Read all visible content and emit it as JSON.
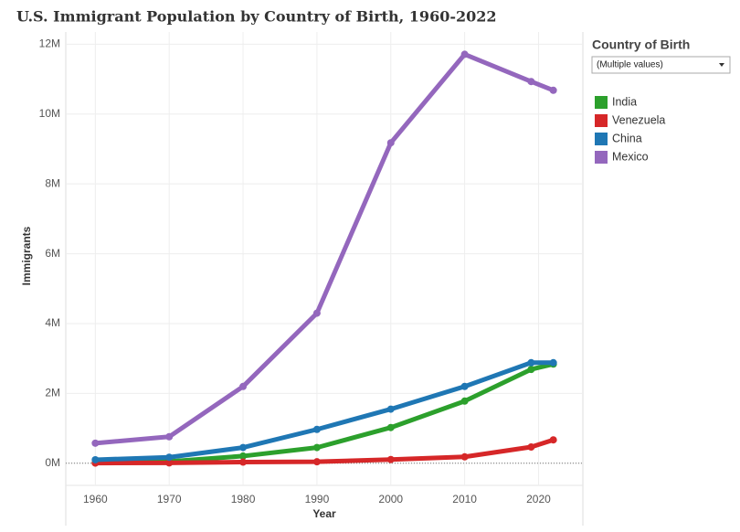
{
  "chart_data": {
    "type": "line",
    "title": "U.S. Immigrant Population by Country of Birth, 1960-2022",
    "x_label": "Year",
    "y_label": "Immigrants",
    "legend_title": "Country of Birth",
    "filter_label": "(Multiple values)",
    "x": [
      1960,
      1970,
      1980,
      1990,
      2000,
      2010,
      2019,
      2022
    ],
    "xlim": [
      1956,
      2026
    ],
    "xticks": [
      1960,
      1970,
      1980,
      1990,
      2000,
      2010,
      2020
    ],
    "ylim": [
      -1000000,
      12350000
    ],
    "yticks": [
      {
        "value": 0,
        "label": "0M"
      },
      {
        "value": 2000000,
        "label": "2M"
      },
      {
        "value": 4000000,
        "label": "4M"
      },
      {
        "value": 6000000,
        "label": "6M"
      },
      {
        "value": 8000000,
        "label": "8M"
      },
      {
        "value": 10000000,
        "label": "10M"
      },
      {
        "value": 12000000,
        "label": "12M"
      }
    ],
    "grid": true,
    "series": [
      {
        "name": "India",
        "color": "#2ca02c",
        "values": [
          12000,
          51000,
          206000,
          450000,
          1023000,
          1780000,
          2688000,
          2840000
        ]
      },
      {
        "name": "Venezuela",
        "color": "#d62728",
        "values": [
          6000,
          11000,
          33000,
          43000,
          107000,
          184000,
          465000,
          670000
        ]
      },
      {
        "name": "China",
        "color": "#1f77b4",
        "values": [
          100000,
          172000,
          450000,
          970000,
          1550000,
          2200000,
          2880000,
          2880000
        ]
      },
      {
        "name": "Mexico",
        "color": "#9467bd",
        "values": [
          575000,
          760000,
          2199000,
          4298000,
          9177000,
          11711000,
          10931000,
          10680000
        ]
      }
    ]
  }
}
